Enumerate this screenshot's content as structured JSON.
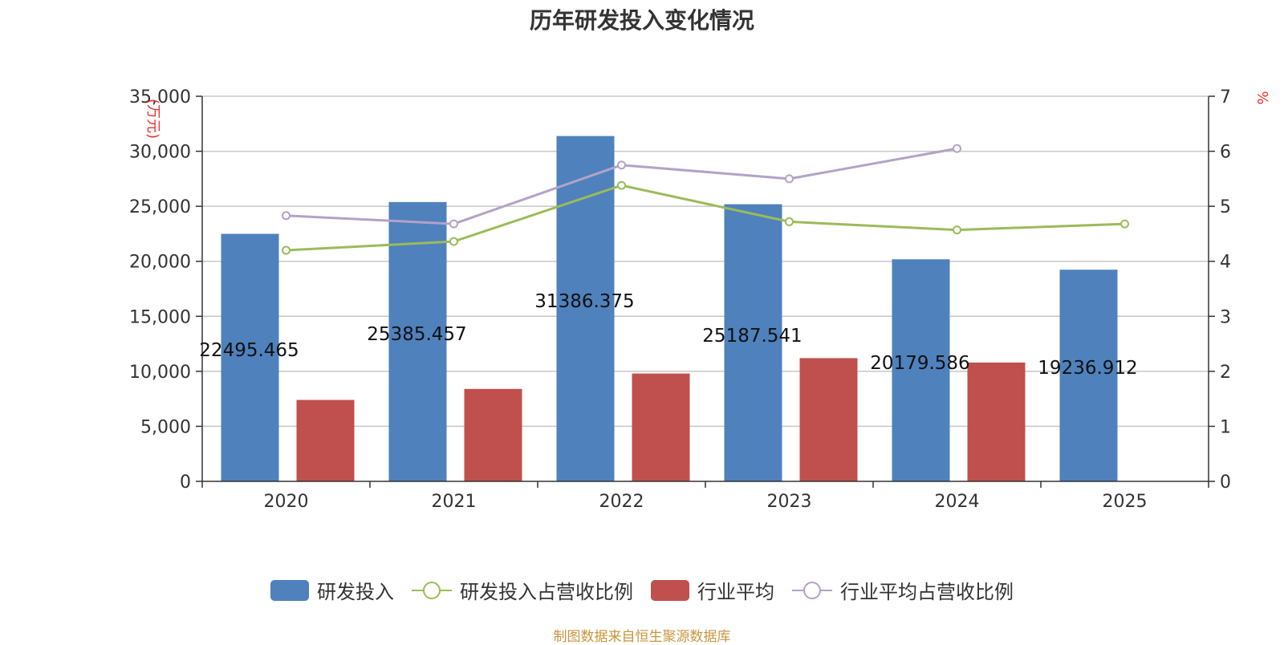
{
  "chart_data": {
    "type": "bar",
    "title": "历年研发投入变化情况",
    "categories": [
      "2020",
      "2021",
      "2022",
      "2023",
      "2024",
      "2025"
    ],
    "series": [
      {
        "name": "研发投入",
        "type": "bar",
        "axis": "left",
        "color": "#4f81bd",
        "values": [
          22495.465,
          25385.457,
          31386.375,
          25187.541,
          20179.586,
          19236.912
        ],
        "labels": [
          "22495.465",
          "25385.457",
          "31386.375",
          "25187.541",
          "20179.586",
          "19236.912"
        ]
      },
      {
        "name": "研发投入占营收比例",
        "type": "line",
        "axis": "right",
        "color": "#9bbb59",
        "values": [
          4.2,
          4.36,
          5.38,
          4.72,
          4.57,
          4.68
        ]
      },
      {
        "name": "行业平均",
        "type": "bar",
        "axis": "left",
        "color": "#c0504d",
        "values": [
          7400,
          8400,
          9800,
          11200,
          10800,
          null
        ]
      },
      {
        "name": "行业平均占营收比例",
        "type": "line",
        "axis": "right",
        "color": "#b3a2c7",
        "values": [
          4.83,
          4.68,
          5.75,
          5.5,
          6.05,
          null
        ]
      }
    ],
    "y_left": {
      "label": "(万元)",
      "ylim": [
        0,
        35000
      ],
      "ticks": [
        "0",
        "5,000",
        "10,000",
        "15,000",
        "20,000",
        "25,000",
        "30,000",
        "35,000"
      ]
    },
    "y_right": {
      "label": "%",
      "ylim": [
        0,
        7
      ],
      "ticks": [
        "0",
        "1",
        "2",
        "3",
        "4",
        "5",
        "6",
        "7"
      ]
    },
    "grid": true,
    "legend_position": "bottom-center"
  },
  "source": "制图数据来自恒生聚源数据库"
}
